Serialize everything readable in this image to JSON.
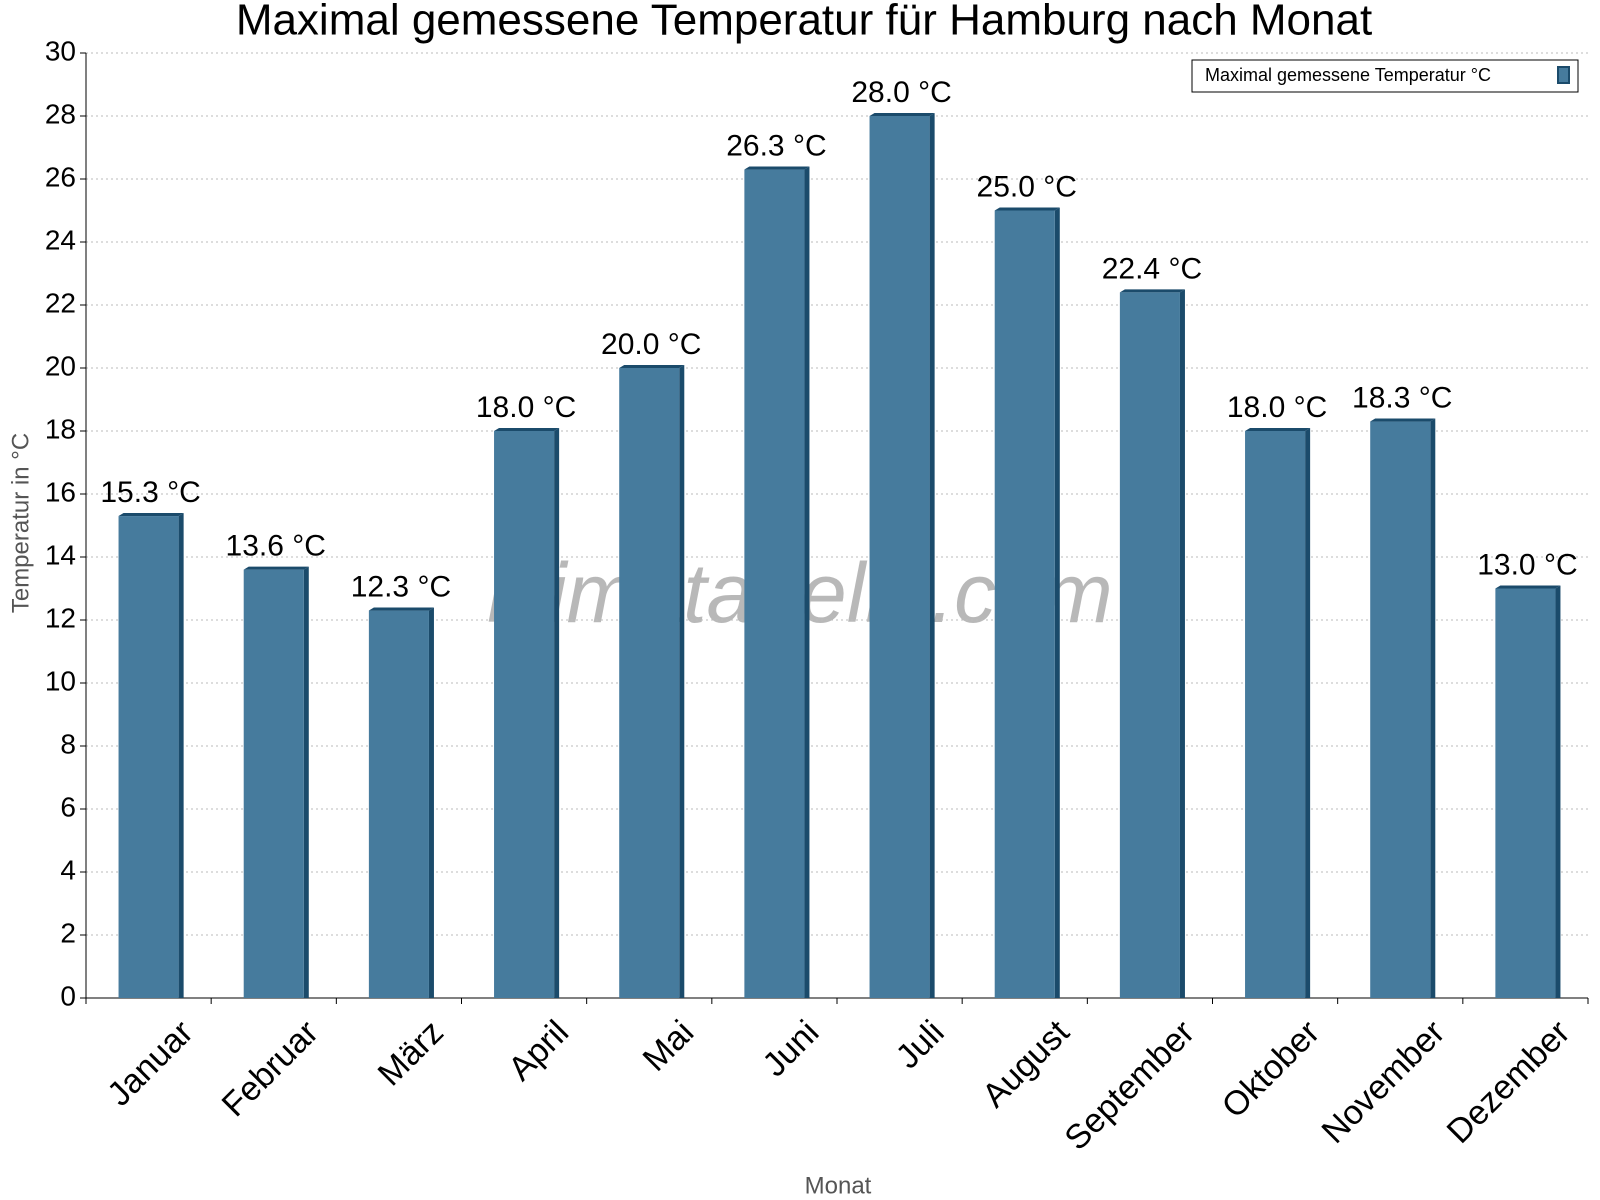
{
  "chart_data": {
    "type": "bar",
    "title": "Maximal gemessene Temperatur für Hamburg nach Monat",
    "x_label": "Monat",
    "y_label": "Temperatur in °C",
    "watermark": "klimatabelle.com",
    "categories": [
      "Januar",
      "Februar",
      "März",
      "April",
      "Mai",
      "Juni",
      "Juli",
      "August",
      "September",
      "Oktober",
      "November",
      "Dezember"
    ],
    "series": [
      {
        "name": "Maximal gemessene Temperatur °C",
        "color": "#467b9d",
        "values": [
          15.3,
          13.6,
          12.3,
          18.0,
          20.0,
          26.3,
          28.0,
          25.0,
          22.4,
          18.0,
          18.3,
          13.0
        ],
        "value_labels": [
          "15.3 °C",
          "13.6 °C",
          "12.3 °C",
          "18.0 °C",
          "20.0 °C",
          "26.3 °C",
          "28.0 °C",
          "25.0 °C",
          "22.4 °C",
          "18.0 °C",
          "18.3 °C",
          "13.0 °C"
        ]
      }
    ],
    "ylim": [
      0,
      30
    ],
    "yticks": [
      0,
      2,
      4,
      6,
      8,
      10,
      12,
      14,
      16,
      18,
      20,
      22,
      24,
      26,
      28,
      30
    ],
    "grid": true,
    "legend": "top-right"
  }
}
